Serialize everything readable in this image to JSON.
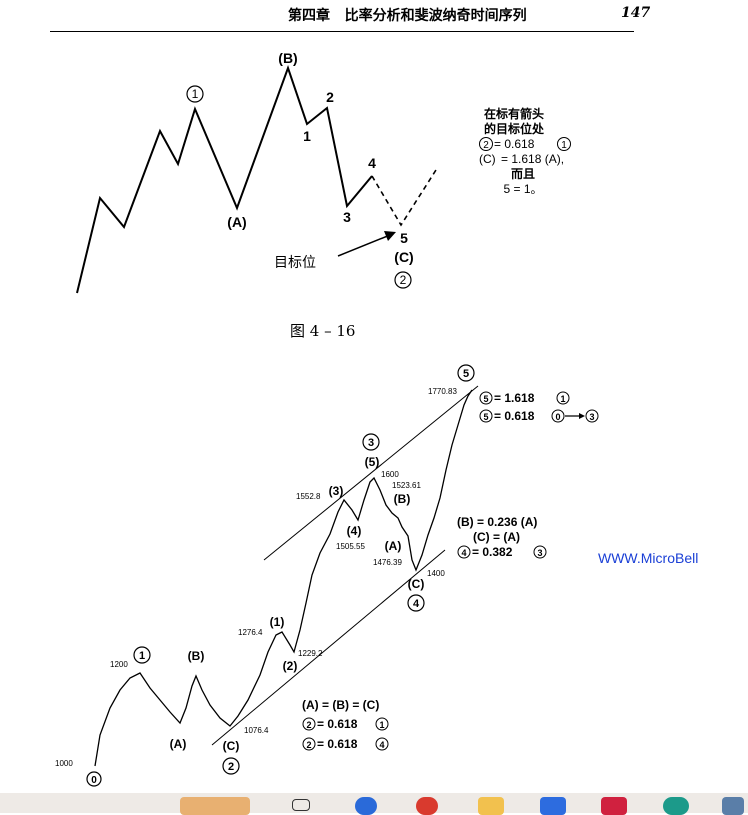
{
  "header": {
    "chapter": "第四章",
    "title": "比率分析和斐波纳奇时间序列",
    "page": "147"
  },
  "figure1": {
    "labels": {
      "w1": "1",
      "B": "(B)",
      "two": "2",
      "one": "1",
      "A": "(A)",
      "three": "3",
      "four": "4",
      "five": "5",
      "C": "(C)",
      "w2": "2",
      "target": "目标位"
    },
    "note": [
      "在标有箭头",
      "的目标位处",
      "= 0.618",
      "= 1.618 (A),",
      "而且",
      "5 = 1。"
    ],
    "note_circle_2": "2",
    "note_circle_1": "1",
    "note_C": "(C)",
    "caption": "图 4 – 16"
  },
  "figure2": {
    "prices": {
      "p1000": "1000",
      "p1200": "1200",
      "p1076": "1076.4",
      "p1276": "1276.4",
      "p1229": "1229.2",
      "p1552": "1552.8",
      "p1505": "1505.55",
      "p1600": "1600",
      "p1523": "1523.61",
      "p1476": "1476.39",
      "p1400": "1400",
      "p1770": "1770.83"
    },
    "waves": {
      "w0": "0",
      "w1": "1",
      "wB": "(B)",
      "wA": "(A)",
      "wC": "(C)",
      "w2": "2",
      "s1": "(1)",
      "s2": "(2)",
      "s3": "(3)",
      "s4": "(4)",
      "s5": "(5)",
      "w3": "3",
      "sB": "(B)",
      "sA": "(A)",
      "sC": "(C)",
      "w4": "4",
      "w5": "5"
    },
    "notes": {
      "top1": "= 1.618",
      "top2": "= 0.618",
      "mid1": "(B) = 0.236 (A)",
      "mid2": "(C) = (A)",
      "mid3": "= 0.382",
      "bot1": "(A) = (B) = (C)",
      "bot2": "= 0.618",
      "bot3": "= 0.618"
    },
    "circ": {
      "c5": "5",
      "c1": "1",
      "c0": "0",
      "c3": "3",
      "c4": "4",
      "c2": "2"
    }
  },
  "watermark": "WWW.MicroBell",
  "taskbar_icons": [
    "task-view-icon",
    "browser-icon",
    "chrome-icon",
    "folder-icon",
    "mail-icon",
    "app-icon",
    "edge-icon",
    "calculator-icon"
  ]
}
